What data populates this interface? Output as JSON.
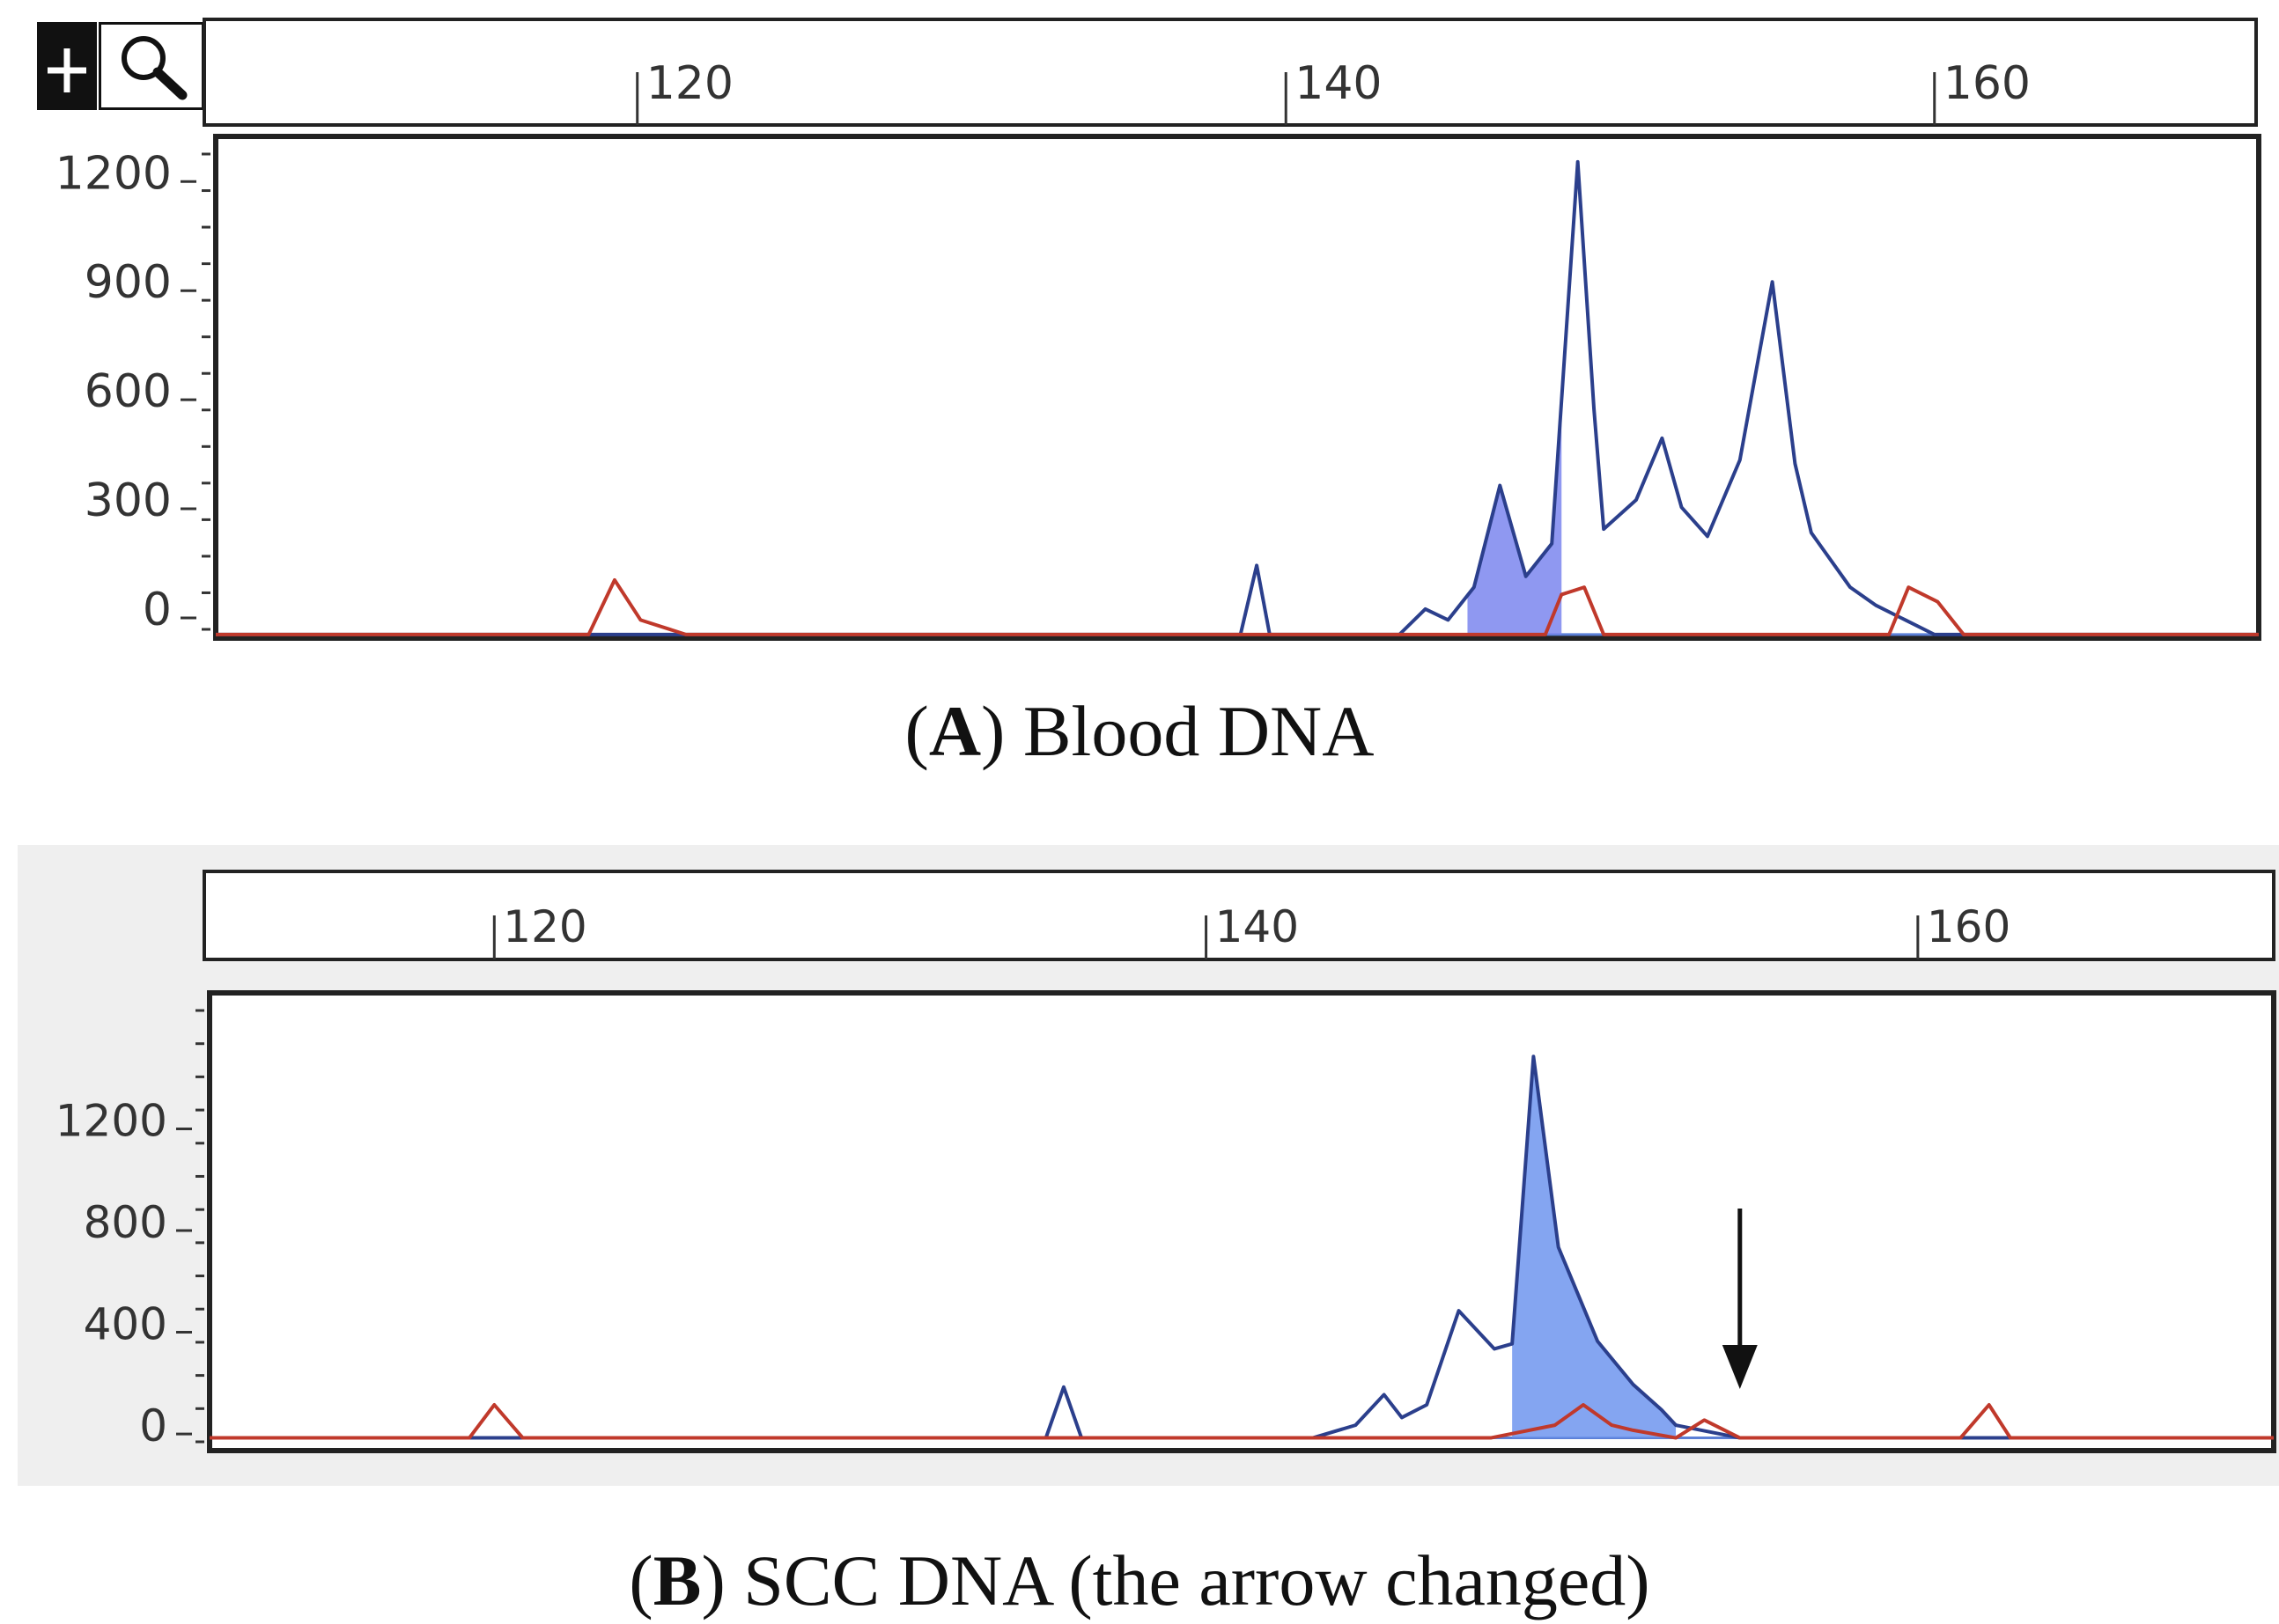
{
  "colors": {
    "trace_blue": "#2b3f8c",
    "trace_red": "#c0392b",
    "fill_a": "#7b86ee",
    "fill_b": "#6f95ee",
    "frame": "#222222",
    "panel_b_bg": "#efefef"
  },
  "toolbar": {
    "plus_icon": "+",
    "zoom_icon": "magnifier-icon"
  },
  "chart_data": [
    {
      "type": "line",
      "panel": "A",
      "caption_letter": "A",
      "caption_text": "Blood DNA",
      "x_ticks": [
        "120",
        "140",
        "160"
      ],
      "y_ticks": [
        "1200",
        "900",
        "600",
        "300",
        "0"
      ],
      "xlim": [
        107,
        170
      ],
      "ylim": [
        -80,
        1300
      ],
      "xlabel": "",
      "ylabel": "",
      "series": [
        {
          "name": "blue trace",
          "color": "blue",
          "x": [
            107,
            138.6,
            139.1,
            139.5,
            143.5,
            144.3,
            145,
            145.8,
            146.6,
            147.4,
            148.2,
            149,
            149.5,
            149.8,
            150.8,
            151.6,
            152.2,
            153,
            154,
            155,
            155.7,
            156.2,
            156.6,
            157.4,
            158.2,
            159.1,
            160,
            160.8,
            161.5,
            163.5,
            170
          ],
          "y": [
            -70,
            -70,
            120,
            -70,
            -70,
            0,
            -30,
            60,
            340,
            90,
            180,
            1230,
            550,
            220,
            300,
            470,
            280,
            200,
            410,
            900,
            400,
            210,
            160,
            60,
            10,
            -30,
            -70,
            -70,
            -70,
            -70,
            -70
          ],
          "filled_range": [
            145.6,
            148.5
          ]
        },
        {
          "name": "red trace",
          "color": "red",
          "x": [
            107,
            118.5,
            119.3,
            120.1,
            121.5,
            145,
            148,
            148.5,
            149.2,
            149.8,
            155,
            158,
            158.6,
            159.2,
            160.1,
            160.9,
            170
          ],
          "y": [
            -70,
            -70,
            80,
            -30,
            -70,
            -70,
            -70,
            40,
            60,
            -70,
            -70,
            -70,
            -70,
            60,
            20,
            -70,
            -70
          ]
        }
      ]
    },
    {
      "type": "line",
      "panel": "B",
      "caption_letter": "B",
      "caption_text": "SCC DNA (the arrow changed)",
      "x_ticks": [
        "120",
        "140",
        "160"
      ],
      "y_ticks": [
        "1200",
        "800",
        "400",
        "0"
      ],
      "xlim": [
        112,
        170
      ],
      "ylim": [
        -100,
        1700
      ],
      "xlabel": "",
      "ylabel": "",
      "annotation": "arrow-down",
      "series": [
        {
          "name": "blue trace",
          "color": "blue",
          "x": [
            112,
            135.5,
            136,
            136.5,
            143,
            144.2,
            145,
            145.5,
            146.2,
            147.1,
            148.1,
            148.6,
            149.2,
            149.9,
            151,
            152,
            152.8,
            153.2,
            155,
            156,
            157,
            158,
            159,
            160,
            170
          ],
          "y": [
            -50,
            -50,
            150,
            -50,
            -50,
            0,
            120,
            30,
            80,
            450,
            300,
            320,
            1450,
            700,
            330,
            160,
            60,
            0,
            -50,
            -50,
            -50,
            -50,
            -50,
            -50,
            -50
          ],
          "filled_range": [
            148.6,
            153.2
          ]
        },
        {
          "name": "red trace",
          "color": "red",
          "x": [
            112,
            119.3,
            120,
            120.8,
            148,
            149.8,
            150.6,
            151.4,
            152,
            153.2,
            154,
            155,
            160,
            161.2,
            162,
            162.6,
            170
          ],
          "y": [
            -50,
            -50,
            80,
            -50,
            -50,
            0,
            80,
            0,
            -20,
            -50,
            20,
            -50,
            -50,
            -50,
            80,
            -50,
            -50
          ]
        }
      ]
    }
  ]
}
